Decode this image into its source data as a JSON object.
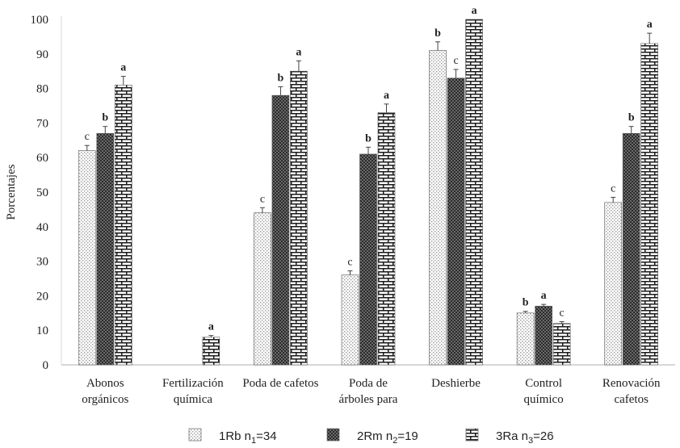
{
  "chart_data": {
    "type": "bar",
    "ylabel": "Porcentajes",
    "ylim": [
      0,
      100
    ],
    "yticks": [
      0,
      10,
      20,
      30,
      40,
      50,
      60,
      70,
      80,
      90,
      100
    ],
    "categories": [
      [
        "Abonos",
        "orgánicos"
      ],
      [
        "Fertilización",
        "química"
      ],
      [
        "Poda de cafetos"
      ],
      [
        "Poda de",
        "árboles para"
      ],
      [
        "Deshierbe"
      ],
      [
        "Control",
        "químico"
      ],
      [
        "Renovación",
        "cafetos"
      ]
    ],
    "series": [
      {
        "name": "1Rb",
        "legend_main": "1Rb n",
        "legend_sub": "1",
        "legend_tail": "=34",
        "pattern": "dots-light",
        "values": [
          62,
          null,
          44,
          26,
          91,
          15,
          47
        ],
        "errors": [
          1.5,
          null,
          1.5,
          1.2,
          2.5,
          0.5,
          1.5
        ],
        "letters": [
          "c",
          "",
          "c",
          "c",
          "b",
          "b",
          "c"
        ]
      },
      {
        "name": "2Rm",
        "legend_main": "2Rm n",
        "legend_sub": "2",
        "legend_tail": "=19",
        "pattern": "dark-checker",
        "values": [
          67,
          null,
          78,
          61,
          83,
          17,
          67
        ],
        "errors": [
          2,
          null,
          2.5,
          2,
          2.5,
          0.5,
          2
        ],
        "letters": [
          "b",
          "",
          "b",
          "b",
          "c",
          "a",
          "b"
        ]
      },
      {
        "name": "3Ra",
        "legend_main": "3Ra n",
        "legend_sub": "3",
        "legend_tail": "=26",
        "pattern": "brick",
        "values": [
          81,
          8,
          85,
          73,
          100,
          12,
          93
        ],
        "errors": [
          2.5,
          0.5,
          3,
          2.5,
          0,
          0.5,
          3
        ],
        "letters": [
          "a",
          "a",
          "a",
          "a",
          "a",
          "c",
          "a"
        ]
      }
    ]
  }
}
